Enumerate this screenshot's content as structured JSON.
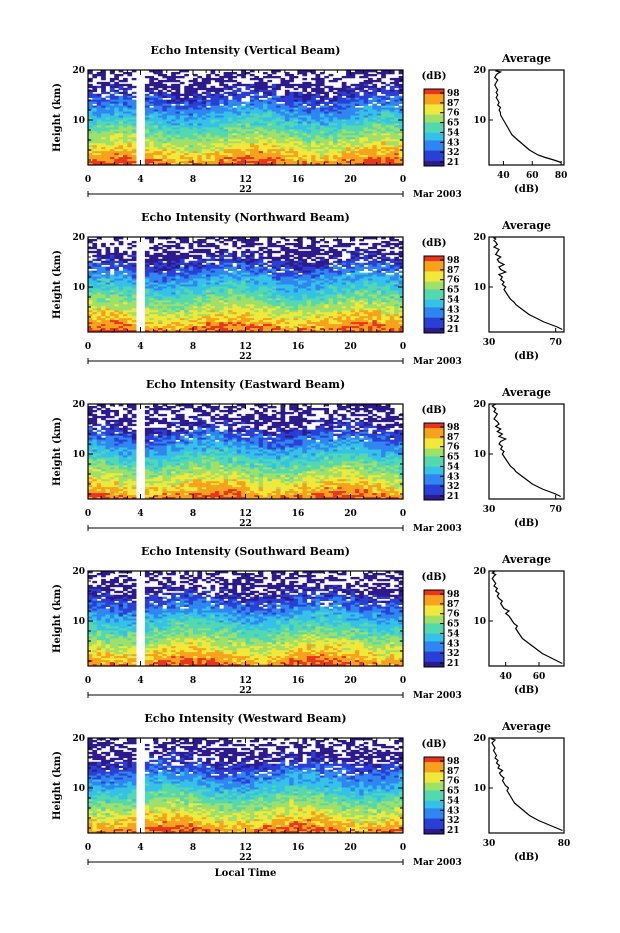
{
  "chart_data": [
    {
      "type": "heatmap",
      "title": "Echo Intensity (Vertical Beam)",
      "ylabel": "Height (km)",
      "y_ticks": [
        "20",
        "10"
      ],
      "x_ticks": [
        "0",
        "4",
        "8",
        "12",
        "16",
        "20",
        "0"
      ],
      "date_day": "22",
      "date_month_year": "Mar 2003",
      "xlim": [
        0,
        24
      ],
      "ylim": [
        1,
        20
      ],
      "colorbar": {
        "unit": "(dB)",
        "ticks": [
          "98",
          "87",
          "76",
          "65",
          "54",
          "43",
          "32",
          "21"
        ]
      },
      "profile": {
        "title": "Average",
        "xlabel": "(dB)",
        "x_ticks": [
          "40",
          "60",
          "80"
        ],
        "y_ticks": [
          "20",
          "10"
        ],
        "xlim": [
          30,
          82
        ],
        "ylim": [
          1,
          20
        ],
        "x": [
          80,
          75,
          69,
          64,
          61,
          58,
          56,
          54,
          52,
          50,
          48,
          46,
          45,
          44,
          43,
          42,
          41,
          40,
          39,
          38,
          38,
          37,
          38,
          36,
          37,
          36,
          35,
          36,
          35,
          36,
          35,
          34,
          35,
          36,
          34,
          35,
          36,
          38,
          35,
          36
        ],
        "y": [
          1.5,
          2,
          2.5,
          3,
          3.5,
          4,
          4.5,
          5,
          5.5,
          6,
          6.5,
          7,
          7.5,
          8,
          8.5,
          9,
          9.5,
          10,
          10.5,
          11,
          11.5,
          12,
          12.5,
          13,
          13.5,
          14,
          14.5,
          15,
          15.5,
          16,
          16.5,
          17,
          17.5,
          18,
          18.5,
          19,
          19.3,
          19.6,
          19.8,
          20
        ]
      }
    },
    {
      "type": "heatmap",
      "title": "Echo Intensity (Northward Beam)",
      "ylabel": "Height (km)",
      "y_ticks": [
        "20",
        "10"
      ],
      "x_ticks": [
        "0",
        "4",
        "8",
        "12",
        "16",
        "20",
        "0"
      ],
      "date_day": "22",
      "date_month_year": "Mar 2003",
      "xlim": [
        0,
        24
      ],
      "ylim": [
        1,
        20
      ],
      "colorbar": {
        "unit": "(dB)",
        "ticks": [
          "98",
          "87",
          "76",
          "65",
          "54",
          "43",
          "32",
          "21"
        ]
      },
      "profile": {
        "title": "Average",
        "xlabel": "(dB)",
        "x_ticks": [
          "30",
          "70"
        ],
        "y_ticks": [
          "20",
          "10"
        ],
        "xlim": [
          30,
          75
        ],
        "ylim": [
          1,
          20
        ],
        "x": [
          74,
          71,
          67,
          63,
          60,
          57,
          54,
          52,
          50,
          48,
          46,
          45,
          43,
          42,
          41,
          40,
          39,
          40,
          38,
          39,
          37,
          38,
          36,
          40,
          37,
          36,
          39,
          36,
          35,
          37,
          34,
          35,
          36,
          33,
          35,
          34,
          33,
          34,
          33,
          34
        ],
        "y": [
          1.5,
          2,
          2.5,
          3,
          3.5,
          4,
          4.5,
          5,
          5.5,
          6,
          6.5,
          7,
          7.5,
          8,
          8.5,
          9,
          9.5,
          10,
          10.5,
          11,
          11.5,
          12,
          12.5,
          13,
          13.5,
          14,
          14.5,
          15,
          15.5,
          16,
          16.5,
          17,
          17.5,
          18,
          18.5,
          19,
          19.3,
          19.6,
          19.8,
          20
        ]
      }
    },
    {
      "type": "heatmap",
      "title": "Echo Intensity (Eastward Beam)",
      "ylabel": "Height (km)",
      "y_ticks": [
        "20",
        "10"
      ],
      "x_ticks": [
        "0",
        "4",
        "8",
        "12",
        "16",
        "20",
        "0"
      ],
      "date_day": "22",
      "date_month_year": "Mar 2003",
      "xlim": [
        0,
        24
      ],
      "ylim": [
        1,
        20
      ],
      "colorbar": {
        "unit": "(dB)",
        "ticks": [
          "98",
          "87",
          "76",
          "65",
          "54",
          "43",
          "32",
          "21"
        ]
      },
      "profile": {
        "title": "Average",
        "xlabel": "(dB)",
        "x_ticks": [
          "30",
          "70"
        ],
        "y_ticks": [
          "20",
          "10"
        ],
        "xlim": [
          30,
          75
        ],
        "ylim": [
          1,
          20
        ],
        "x": [
          73,
          70,
          66,
          62,
          59,
          56,
          54,
          52,
          50,
          48,
          46,
          45,
          43,
          42,
          41,
          40,
          39,
          38,
          39,
          37,
          38,
          36,
          37,
          40,
          36,
          38,
          35,
          37,
          34,
          36,
          35,
          33,
          34,
          35,
          33,
          34,
          33,
          32,
          33,
          34
        ],
        "y": [
          1.5,
          2,
          2.5,
          3,
          3.5,
          4,
          4.5,
          5,
          5.5,
          6,
          6.5,
          7,
          7.5,
          8,
          8.5,
          9,
          9.5,
          10,
          10.5,
          11,
          11.5,
          12,
          12.5,
          13,
          13.5,
          14,
          14.5,
          15,
          15.5,
          16,
          16.5,
          17,
          17.5,
          18,
          18.5,
          19,
          19.3,
          19.6,
          19.8,
          20
        ]
      }
    },
    {
      "type": "heatmap",
      "title": "Echo Intensity (Southward Beam)",
      "ylabel": "Height (km)",
      "y_ticks": [
        "20",
        "10"
      ],
      "x_ticks": [
        "0",
        "4",
        "8",
        "12",
        "16",
        "20",
        "0"
      ],
      "date_day": "22",
      "date_month_year": "Mar 2003",
      "xlim": [
        0,
        24
      ],
      "ylim": [
        1,
        20
      ],
      "colorbar": {
        "unit": "(dB)",
        "ticks": [
          "98",
          "87",
          "76",
          "65",
          "54",
          "43",
          "32",
          "21"
        ]
      },
      "profile": {
        "title": "Average",
        "xlabel": "(dB)",
        "x_ticks": [
          "40",
          "60"
        ],
        "y_ticks": [
          "20",
          "10"
        ],
        "xlim": [
          30,
          75
        ],
        "ylim": [
          1,
          20
        ],
        "x": [
          74,
          71,
          68,
          65,
          62,
          60,
          58,
          56,
          54,
          52,
          50,
          49,
          48,
          47,
          46,
          47,
          45,
          44,
          43,
          42,
          40,
          42,
          39,
          38,
          37,
          38,
          36,
          35,
          36,
          34,
          35,
          33,
          34,
          33,
          32,
          33,
          34,
          32,
          33,
          32
        ],
        "y": [
          1.5,
          2,
          2.5,
          3,
          3.5,
          4,
          4.5,
          5,
          5.5,
          6,
          6.5,
          7,
          7.5,
          8,
          8.5,
          9,
          9.5,
          10,
          10.5,
          11,
          11.5,
          12,
          12.5,
          13,
          13.5,
          14,
          14.5,
          15,
          15.5,
          16,
          16.5,
          17,
          17.5,
          18,
          18.5,
          19,
          19.3,
          19.6,
          19.8,
          20
        ]
      }
    },
    {
      "type": "heatmap",
      "title": "Echo Intensity (Westward Beam)",
      "ylabel": "Height (km)",
      "y_ticks": [
        "20",
        "10"
      ],
      "x_ticks": [
        "0",
        "4",
        "8",
        "12",
        "16",
        "20",
        "0"
      ],
      "date_day": "22",
      "date_month_year": "Mar 2003",
      "xlabel": "Local Time",
      "xlim": [
        0,
        24
      ],
      "ylim": [
        1,
        20
      ],
      "colorbar": {
        "unit": "(dB)",
        "ticks": [
          "98",
          "87",
          "76",
          "65",
          "54",
          "43",
          "32",
          "21"
        ]
      },
      "profile": {
        "title": "Average",
        "xlabel": "(dB)",
        "x_ticks": [
          "30",
          "80"
        ],
        "y_ticks": [
          "20",
          "10"
        ],
        "xlim": [
          30,
          80
        ],
        "ylim": [
          1,
          20
        ],
        "x": [
          79,
          75,
          71,
          67,
          63,
          60,
          57,
          55,
          53,
          51,
          49,
          47,
          46,
          45,
          44,
          43,
          42,
          43,
          41,
          40,
          39,
          40,
          38,
          37,
          39,
          36,
          37,
          35,
          36,
          34,
          35,
          34,
          33,
          34,
          33,
          32,
          33,
          34,
          32,
          33
        ],
        "y": [
          1.5,
          2,
          2.5,
          3,
          3.5,
          4,
          4.5,
          5,
          5.5,
          6,
          6.5,
          7,
          7.5,
          8,
          8.5,
          9,
          9.5,
          10,
          10.5,
          11,
          11.5,
          12,
          12.5,
          13,
          13.5,
          14,
          14.5,
          15,
          15.5,
          16,
          16.5,
          17,
          17.5,
          18,
          18.5,
          19,
          19.3,
          19.6,
          19.8,
          20
        ]
      }
    }
  ],
  "colors": {
    "colormap": [
      "#2d1a8c",
      "#2a3fd6",
      "#2f86f0",
      "#35c1e8",
      "#54d8b0",
      "#9ee06a",
      "#f0e83a",
      "#f7a21c",
      "#e8361e"
    ],
    "missing": "#ffffff",
    "line": "#000000"
  }
}
